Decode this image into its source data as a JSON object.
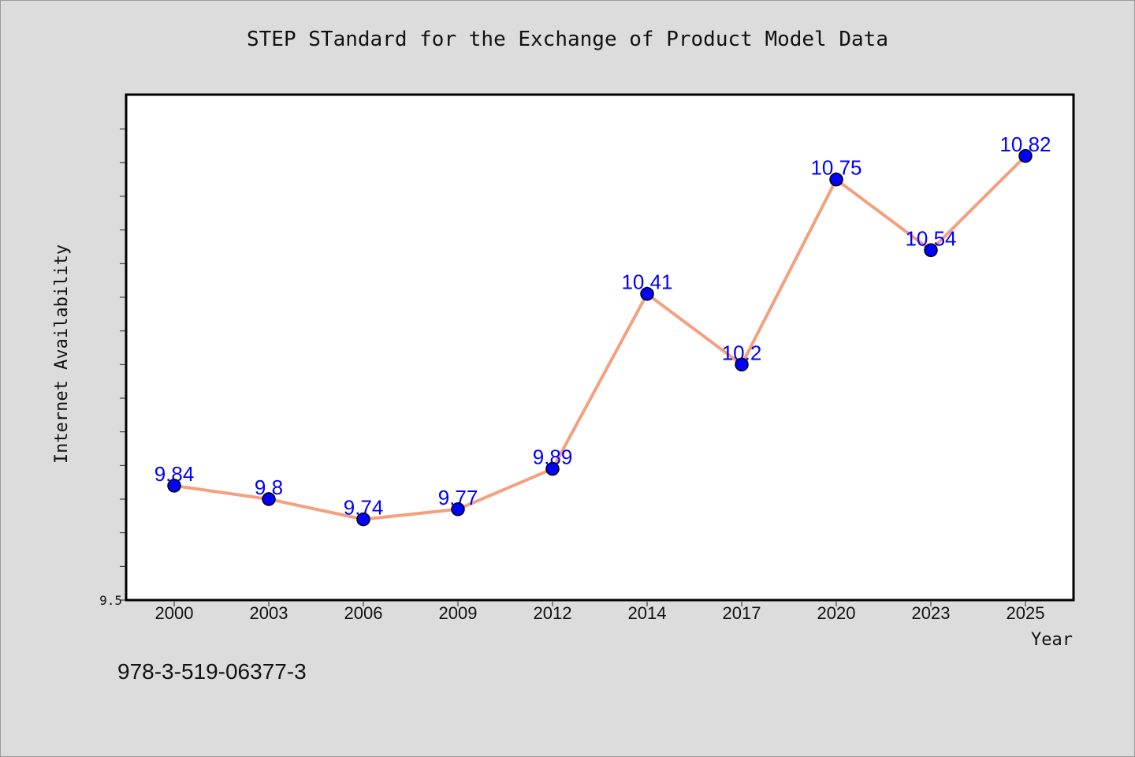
{
  "chart_data": {
    "type": "line",
    "title": "STEP STandard for the Exchange of Product Model Data",
    "xlabel": "Year",
    "ylabel": "Internet Availability",
    "categories": [
      "2000",
      "2003",
      "2006",
      "2009",
      "2012",
      "2014",
      "2017",
      "2020",
      "2023",
      "2025"
    ],
    "series": [
      {
        "values": [
          9.84,
          9.8,
          9.74,
          9.77,
          9.89,
          10.41,
          10.2,
          10.75,
          10.54,
          10.82
        ],
        "labels": [
          "9.84",
          "9.8",
          "9.74",
          "9.77",
          "9.89",
          "10.41",
          "10.2",
          "10.75",
          "10.54",
          "10.82"
        ]
      }
    ],
    "ylim": [
      9.5,
      11.0
    ],
    "ytick_step": 0.1,
    "yticklabels_shown": [
      "9.5"
    ],
    "grid": false,
    "legend": "none",
    "colors": {
      "line": "#f4a07f",
      "marker": "#0000ff",
      "data_label": "#0000ff",
      "plot_background": "#ffffff",
      "page_background": "#dcdcdc"
    }
  },
  "footer": {
    "code": "978-3-519-06377-3"
  }
}
